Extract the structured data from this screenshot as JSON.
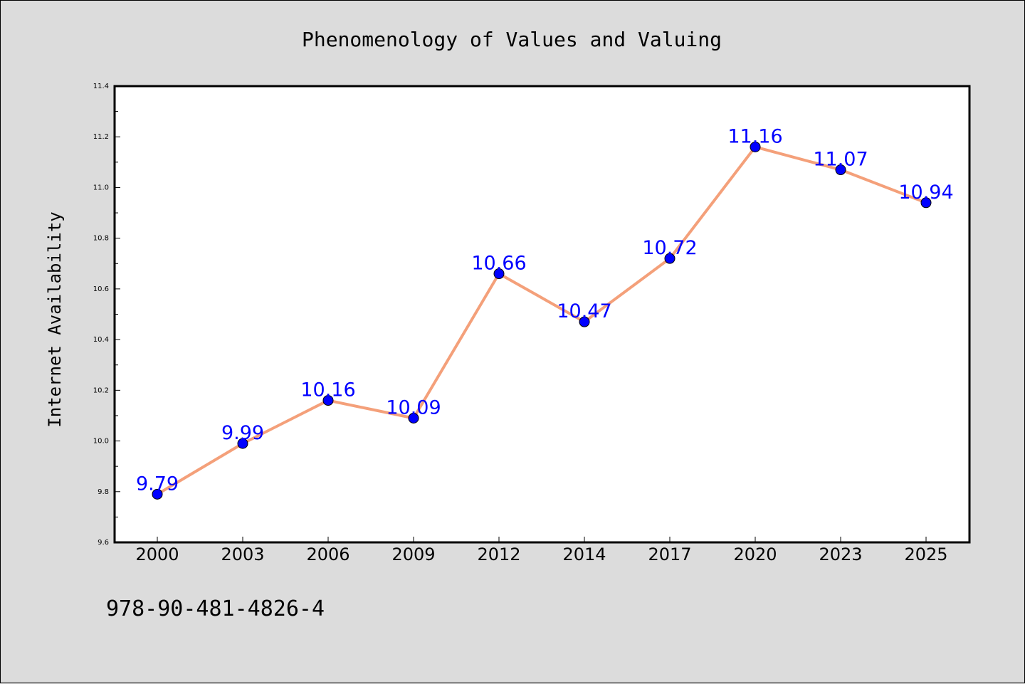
{
  "chart_data": {
    "type": "line",
    "title": "Phenomenology of Values and Valuing",
    "xlabel": "",
    "ylabel": "Internet Availability",
    "categories": [
      "2000",
      "2003",
      "2006",
      "2009",
      "2012",
      "2014",
      "2017",
      "2020",
      "2023",
      "2025"
    ],
    "series": [
      {
        "values": [
          9.79,
          9.99,
          10.16,
          10.09,
          10.66,
          10.47,
          10.72,
          11.16,
          11.07,
          10.94
        ],
        "line_color": "#f4a07a",
        "marker_color": "#0000ff"
      }
    ],
    "data_labels": [
      "9.79",
      "9.99",
      "10.16",
      "10.09",
      "10.66",
      "10.47",
      "10.72",
      "11.16",
      "11.07",
      "10.94"
    ],
    "ylim": [
      9.6,
      11.4
    ],
    "yticks": [
      "9.6",
      "9.8",
      "10.0",
      "10.2",
      "10.4",
      "10.6",
      "10.8",
      "11.0",
      "11.2",
      "11.4"
    ],
    "grid": false,
    "legend": "none"
  },
  "footer": {
    "isbn": "978-90-481-4826-4"
  }
}
